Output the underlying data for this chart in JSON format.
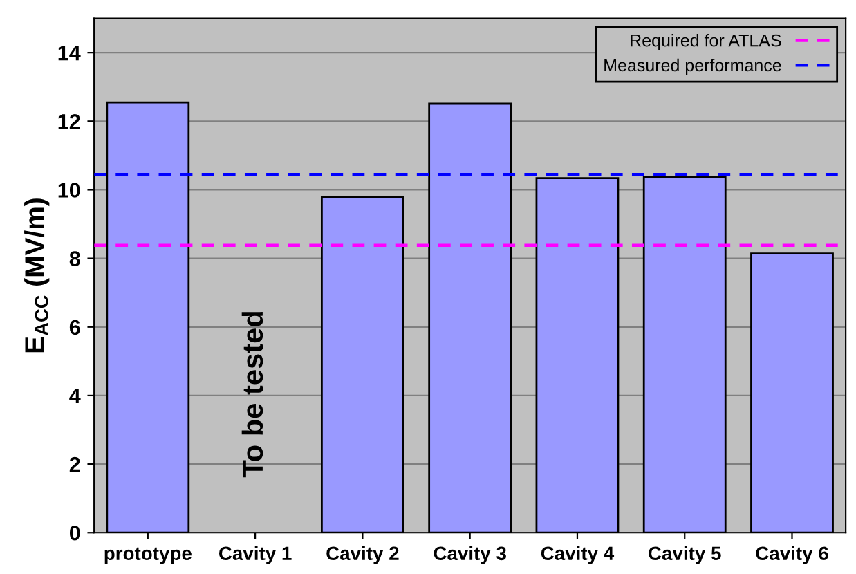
{
  "chart_data": {
    "type": "bar",
    "ylabel": "E$_{ACC}$ (MV/m)",
    "categories": [
      "prototype",
      "Cavity 1",
      "Cavity 2",
      "Cavity 3",
      "Cavity 4",
      "Cavity 5",
      "Cavity 6"
    ],
    "values": [
      12.55,
      null,
      9.78,
      12.51,
      10.34,
      10.37,
      8.14
    ],
    "color": "#9999ff",
    "ylim": [
      0,
      15
    ],
    "yticks": [
      0,
      2,
      4,
      6,
      8,
      10,
      12,
      14
    ],
    "grid": "y",
    "legend": "top right",
    "ref_lines": [
      {
        "axis": "y",
        "value": 8.38,
        "label": "Required for ATLAS",
        "color": "#ff00ff",
        "line_style": "dashed"
      },
      {
        "axis": "y",
        "value": 10.45,
        "label": "Measured performance",
        "color": "#0000ff",
        "line_style": "dashed"
      }
    ],
    "annotations": [
      "To be tested"
    ]
  }
}
